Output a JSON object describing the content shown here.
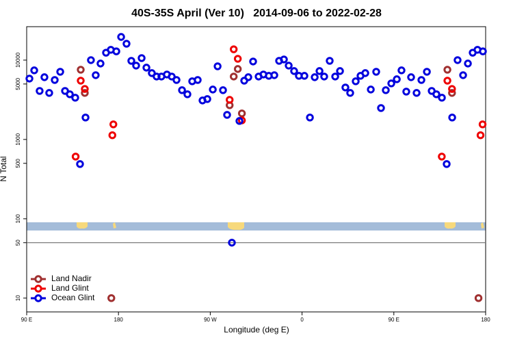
{
  "chart_data": {
    "type": "scatter",
    "title": "40S-35S April (Ver 10)   2014-09-06 to 2022-02-28",
    "x_label": "Longitude (deg E)",
    "y_label": "N Total",
    "log_y": true,
    "legend_position": "bottom-left",
    "reference_line": 50,
    "xlim": [
      90,
      540
    ],
    "xticks": [
      {
        "value": 90,
        "label": "90 E"
      },
      180,
      {
        "value": 270,
        "label": "90 W"
      },
      {
        "value": 360,
        "label": "0"
      },
      {
        "value": 450,
        "label": "90 E"
      },
      {
        "value": 540,
        "label": "180"
      }
    ],
    "ylim": [
      6.7,
      26400
    ],
    "yticks": [
      10,
      50,
      100,
      500,
      1000,
      5000,
      10000
    ],
    "series": [
      {
        "name": "Land Nadir",
        "color": "#a03030",
        "x": [
          143,
          147,
          173,
          293,
          297,
          289,
          301,
          502.5,
          507,
          533
        ],
        "values": [
          7570,
          3860,
          10,
          6210,
          7730,
          2700,
          2130,
          7570,
          3860,
          10
        ]
      },
      {
        "name": "Land Glint",
        "color": "#ee0000",
        "x": [
          138,
          143,
          147,
          175,
          174,
          293,
          297,
          289,
          301,
          497,
          502.5,
          507,
          537,
          535
        ],
        "values": [
          608,
          5510,
          4330,
          1550,
          1130,
          13700,
          10400,
          3160,
          1740,
          608,
          5510,
          4330,
          1550,
          1130
        ]
      },
      {
        "name": "Ocean Glint",
        "color": "#0000dd",
        "x": [
          92.7,
          97.4,
          102.7,
          107.4,
          112.1,
          117.5,
          122.9,
          127.6,
          132.3,
          137.6,
          142.3,
          147.7,
          153,
          157.7,
          162.4,
          167.8,
          172.5,
          177.9,
          182.6,
          187.9,
          192.6,
          197.3,
          202.7,
          207.4,
          212.7,
          217.4,
          222.1,
          227.5,
          232.2,
          236.9,
          242.3,
          247.6,
          252.3,
          257.7,
          262.4,
          267.1,
          272.5,
          277.2,
          282.5,
          286.5,
          291.2,
          298.6,
          303.3,
          307.3,
          312,
          317.4,
          322.1,
          327.4,
          332.8,
          337.5,
          342.2,
          346.9,
          352.2,
          356.9,
          362.3,
          367.7,
          372.4,
          377.1,
          381.7,
          387.1,
          392.5,
          397.2,
          402.5,
          407.2,
          412.6,
          417.3,
          422,
          427.4,
          432.7,
          437.4,
          442.1,
          447.5,
          452.9,
          457.5,
          462.2,
          466.9,
          472.3,
          477,
          482.4,
          487.1,
          491.7,
          497.1,
          501.8,
          507.2,
          512.5,
          517.9,
          522.6,
          527.3,
          532,
          537.3
        ],
        "values": [
          5850,
          7430,
          4090,
          6090,
          3860,
          5620,
          7130,
          4090,
          3710,
          3360,
          490,
          1890,
          10000,
          6460,
          9060,
          12400,
          13500,
          12900,
          19600,
          16100,
          9800,
          8530,
          10600,
          8040,
          6860,
          6210,
          6210,
          6590,
          6210,
          5620,
          4180,
          3710,
          5410,
          5620,
          3100,
          3230,
          4260,
          8360,
          4180,
          2040,
          50,
          1710,
          5510,
          6090,
          9610,
          6210,
          6590,
          6340,
          6460,
          9800,
          10200,
          8530,
          7280,
          6340,
          6340,
          1890,
          6090,
          7280,
          6210,
          9800,
          6210,
          7280,
          4520,
          3860,
          5410,
          6340,
          6860,
          4260,
          7130,
          2490,
          4180,
          5090,
          5740,
          7430,
          4010,
          6090,
          3860,
          5620,
          7130,
          4090,
          3710,
          3360,
          490,
          1890,
          10000,
          6460,
          9060,
          12400,
          13500,
          12900
        ]
      }
    ]
  }
}
